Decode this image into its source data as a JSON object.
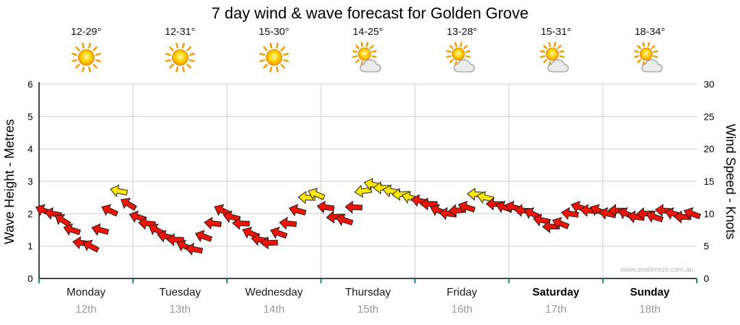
{
  "title": "7 day wind & wave forecast for Golden Grove",
  "watermark": "www.seabreeze.com.au",
  "days": [
    {
      "name": "Monday",
      "date": "12th",
      "temp": "12-29°",
      "icon": "sunny",
      "weekend": false
    },
    {
      "name": "Tuesday",
      "date": "13th",
      "temp": "12-31°",
      "icon": "sunny",
      "weekend": false
    },
    {
      "name": "Wednesday",
      "date": "14th",
      "temp": "15-30°",
      "icon": "sunny",
      "weekend": false
    },
    {
      "name": "Thursday",
      "date": "15th",
      "temp": "14-25°",
      "icon": "partly-cloudy",
      "weekend": false
    },
    {
      "name": "Friday",
      "date": "16th",
      "temp": "13-28°",
      "icon": "partly-cloudy",
      "weekend": false
    },
    {
      "name": "Saturday",
      "date": "17th",
      "temp": "15-31°",
      "icon": "partly-cloudy",
      "weekend": true
    },
    {
      "name": "Sunday",
      "date": "18th",
      "temp": "18-34°",
      "icon": "partly-cloudy",
      "weekend": true
    }
  ],
  "colors": {
    "arrow_red": "#ee1506",
    "arrow_yellow": "#ffe600",
    "arrow_outline": "#1a1a1a",
    "grid": "#cccccc",
    "axis": "#000000",
    "tick_teal": "#008a8a",
    "day_text": "#1a1a1a",
    "date_text": "#999999",
    "watermark_text": "#b5b5b5"
  },
  "chart_data": {
    "type": "scatter",
    "title": "7 day wind & wave forecast for Golden Grove",
    "x_categories": [
      "Monday 12th",
      "Tuesday 13th",
      "Wednesday 14th",
      "Thursday 15th",
      "Friday 16th",
      "Saturday 17th",
      "Sunday 18th"
    ],
    "points_per_day": 10,
    "grid": true,
    "y_left": {
      "label": "Wave Height - Metres",
      "min": 0,
      "max": 6,
      "ticks": [
        0,
        1,
        2,
        3,
        4,
        5,
        6
      ]
    },
    "y_right": {
      "label": "Wind Speed - Knots",
      "min": 0,
      "max": 30,
      "ticks": [
        0,
        5,
        10,
        15,
        20,
        25,
        30
      ]
    },
    "series": [
      {
        "name": "wind-arrows",
        "unit": "knots",
        "format": "[knots, direction_deg, color r=red y=yellow]",
        "points": [
          [
            10.5,
            203,
            "r"
          ],
          [
            10,
            191,
            "r"
          ],
          [
            9,
            213,
            "r"
          ],
          [
            7.5,
            198,
            "r"
          ],
          [
            5.5,
            187,
            "r"
          ],
          [
            5,
            209,
            "r"
          ],
          [
            7.5,
            195,
            "r"
          ],
          [
            10.5,
            205,
            "r"
          ],
          [
            13.5,
            192,
            "y"
          ],
          [
            11.5,
            211,
            "r"
          ],
          [
            9.5,
            198,
            "r"
          ],
          [
            8.5,
            186,
            "r"
          ],
          [
            7.5,
            208,
            "r"
          ],
          [
            6.5,
            193,
            "r"
          ],
          [
            6,
            182,
            "r"
          ],
          [
            5,
            204,
            "r"
          ],
          [
            4.5,
            190,
            "r"
          ],
          [
            6.5,
            200,
            "r"
          ],
          [
            8.5,
            187,
            "r"
          ],
          [
            10.5,
            206,
            "r"
          ],
          [
            9.5,
            194,
            "r"
          ],
          [
            8.5,
            182,
            "r"
          ],
          [
            7,
            204,
            "r"
          ],
          [
            6,
            189,
            "r"
          ],
          [
            5.5,
            178,
            "r"
          ],
          [
            7,
            200,
            "r"
          ],
          [
            8.5,
            186,
            "r"
          ],
          [
            10.5,
            196,
            "r"
          ],
          [
            12.5,
            183,
            "y"
          ],
          [
            13,
            202,
            "y"
          ],
          [
            11,
            188,
            "r"
          ],
          [
            9.5,
            176,
            "r"
          ],
          [
            9,
            198,
            "r"
          ],
          [
            11,
            183,
            "r"
          ],
          [
            13.5,
            172,
            "y"
          ],
          [
            14.5,
            194,
            "y"
          ],
          [
            14,
            180,
            "y"
          ],
          [
            13.5,
            190,
            "y"
          ],
          [
            13,
            177,
            "y"
          ],
          [
            12.5,
            196,
            "y"
          ],
          [
            12,
            192,
            "r"
          ],
          [
            11.5,
            180,
            "r"
          ],
          [
            10.5,
            202,
            "r"
          ],
          [
            10,
            187,
            "r"
          ],
          [
            10.5,
            176,
            "r"
          ],
          [
            11,
            198,
            "r"
          ],
          [
            13,
            184,
            "y"
          ],
          [
            12.5,
            194,
            "y"
          ],
          [
            11.5,
            181,
            "r"
          ],
          [
            11,
            200,
            "r"
          ],
          [
            11,
            196,
            "r"
          ],
          [
            10.5,
            184,
            "r"
          ],
          [
            10,
            206,
            "r"
          ],
          [
            9,
            191,
            "r"
          ],
          [
            8,
            180,
            "r"
          ],
          [
            8.5,
            202,
            "r"
          ],
          [
            10,
            188,
            "r"
          ],
          [
            11,
            198,
            "r"
          ],
          [
            10.5,
            185,
            "r"
          ],
          [
            10.5,
            204,
            "r"
          ],
          [
            10,
            193,
            "r"
          ],
          [
            10.5,
            181,
            "r"
          ],
          [
            10,
            203,
            "r"
          ],
          [
            9.5,
            188,
            "r"
          ],
          [
            10,
            177,
            "r"
          ],
          [
            9.5,
            199,
            "r"
          ],
          [
            10.5,
            185,
            "r"
          ],
          [
            10,
            195,
            "r"
          ],
          [
            9.5,
            182,
            "r"
          ],
          [
            10,
            201,
            "r"
          ]
        ]
      }
    ]
  }
}
